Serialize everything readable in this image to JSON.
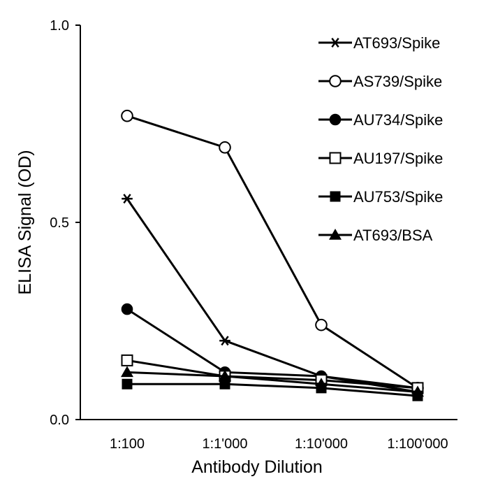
{
  "chart_data": {
    "type": "line",
    "title": "",
    "xlabel": "Antibody Dilution",
    "ylabel": "ELISA Signal (OD)",
    "categories": [
      "1:100",
      "1:1'000",
      "1:10'000",
      "1:100'000"
    ],
    "ylim": [
      0.0,
      1.0
    ],
    "yticks": [
      "0.0",
      "0.5",
      "1.0"
    ],
    "grid": false,
    "legend_position": "top-right",
    "line_color": "#000000",
    "series": [
      {
        "name": "AT693/Spike",
        "marker": "star",
        "values": [
          0.56,
          0.2,
          0.11,
          0.08
        ]
      },
      {
        "name": "AS739/Spike",
        "marker": "circle-open",
        "values": [
          0.77,
          0.69,
          0.24,
          0.08
        ]
      },
      {
        "name": "AU734/Spike",
        "marker": "circle-filled",
        "values": [
          0.28,
          0.12,
          0.11,
          0.07
        ]
      },
      {
        "name": "AU197/Spike",
        "marker": "square-open",
        "values": [
          0.15,
          0.11,
          0.1,
          0.08
        ]
      },
      {
        "name": "AU753/Spike",
        "marker": "square-filled",
        "values": [
          0.09,
          0.09,
          0.08,
          0.06
        ]
      },
      {
        "name": "AT693/BSA",
        "marker": "triangle-filled",
        "values": [
          0.12,
          0.11,
          0.09,
          0.07
        ]
      }
    ]
  }
}
